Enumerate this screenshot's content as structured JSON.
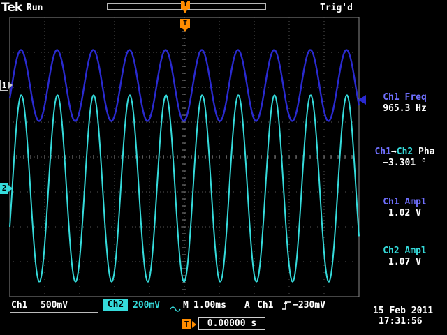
{
  "header": {
    "brand": "Tek",
    "acq_status": "Run",
    "trig_status": "Trig'd",
    "trigger_marker": "T"
  },
  "right_panel": {
    "measurements": [
      {
        "parts": [
          {
            "t": "Ch1 Freq",
            "c": "ch1"
          }
        ],
        "value": "965.3 Hz"
      },
      {
        "parts": [
          {
            "t": "Ch1",
            "c": "ch1"
          },
          {
            "t": "→",
            "c": "white"
          },
          {
            "t": "Ch2",
            "c": "ch2"
          },
          {
            "t": " Pha",
            "c": "white"
          }
        ],
        "value": "−3.301 °"
      },
      {
        "parts": [
          {
            "t": "Ch1 Ampl",
            "c": "ch1"
          }
        ],
        "value": "1.02 V"
      },
      {
        "parts": [
          {
            "t": "Ch2 Ampl",
            "c": "ch2"
          }
        ],
        "value": "1.07 V"
      }
    ]
  },
  "channel_markers": {
    "ch1": "1",
    "ch2": "2"
  },
  "status_bar": {
    "ch1_label": "Ch1",
    "ch1_scale": "500mV",
    "ch2_label": "Ch2",
    "ch2_scale": "200mV",
    "timebase_label": "M",
    "timebase": "1.00ms",
    "trig_type": "A",
    "trig_source": "Ch1",
    "trig_level": "−230mV"
  },
  "footer": {
    "date": "15 Feb 2011",
    "time": "17:31:56",
    "h_pos_marker": "T",
    "h_pos_value": "0.00000 s"
  },
  "colors": {
    "ch1": "#2a2ad0",
    "ch2": "#35dbdb",
    "orange": "#ff8c00"
  },
  "chart_data": {
    "type": "line",
    "title": "Oscilloscope traces",
    "timebase_s_per_div": 0.001,
    "divisions_x": 10,
    "divisions_y": 8,
    "trigger": {
      "source": "Ch1",
      "level_v": -0.23,
      "slope": "rising"
    },
    "series": [
      {
        "name": "Ch1",
        "color": "#2a2ad0",
        "freq_hz": 965.3,
        "amplitude_vpp": 1.02,
        "volts_per_div": 0.5,
        "center_div": 1.95,
        "phase_deg_at_left": -21,
        "stroke_width": 2.4
      },
      {
        "name": "Ch2",
        "color": "#35dbdb",
        "freq_hz": 965.3,
        "amplitude_vpp": 1.07,
        "volts_per_div": 0.2,
        "center_div": 4.9,
        "phase_deg_at_left": -24.3,
        "stroke_width": 2
      }
    ]
  }
}
